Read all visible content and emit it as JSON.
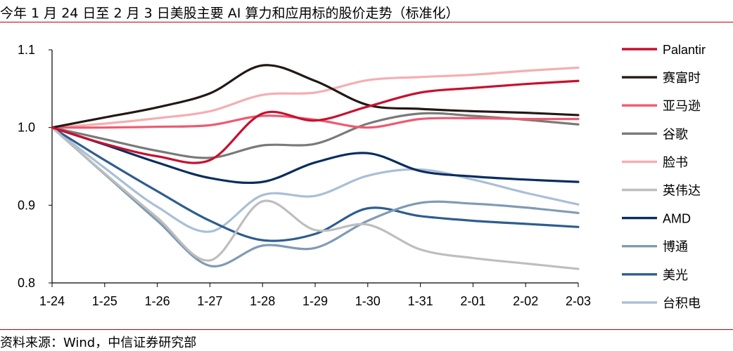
{
  "title": "今年 1 月 24 日至 2 月 3 日美股主要 AI 算力和应用标的股价走势（标准化）",
  "source": "资料来源：Wind，中信证券研究部",
  "chart_data": {
    "type": "line",
    "title": "今年 1 月 24 日至 2 月 3 日美股主要 AI 算力和应用标的股价走势（标准化）",
    "xlabel": "",
    "ylabel": "",
    "categories": [
      "1-24",
      "1-25",
      "1-26",
      "1-27",
      "1-28",
      "1-29",
      "1-30",
      "1-31",
      "2-01",
      "2-02",
      "2-03"
    ],
    "ylim": [
      0.8,
      1.1
    ],
    "yticks": [
      "0.8",
      "0.9",
      "1.0",
      "1.1"
    ],
    "grid": false,
    "legend_position": "right",
    "series": [
      {
        "name": "Palantir",
        "color": "#c8102e",
        "values": [
          1.0,
          0.979,
          0.963,
          0.958,
          1.018,
          1.009,
          1.027,
          1.045,
          1.051,
          1.056,
          1.06
        ]
      },
      {
        "name": "赛富时",
        "color": "#231815",
        "values": [
          1.0,
          1.013,
          1.026,
          1.044,
          1.08,
          1.06,
          1.029,
          1.024,
          1.021,
          1.019,
          1.016
        ]
      },
      {
        "name": "亚马逊",
        "color": "#ee5a70",
        "values": [
          1.0,
          1.0,
          1.001,
          1.003,
          1.015,
          1.01,
          1.0,
          1.011,
          1.012,
          1.011,
          1.011
        ]
      },
      {
        "name": "谷歌",
        "color": "#7a7a7a",
        "values": [
          1.0,
          0.985,
          0.97,
          0.961,
          0.977,
          0.979,
          1.005,
          1.018,
          1.015,
          1.01,
          1.004
        ]
      },
      {
        "name": "脸书",
        "color": "#f5aeb0",
        "values": [
          1.0,
          1.005,
          1.012,
          1.021,
          1.042,
          1.045,
          1.061,
          1.065,
          1.068,
          1.073,
          1.077
        ]
      },
      {
        "name": "英伟达",
        "color": "#bebebe",
        "values": [
          1.0,
          0.941,
          0.884,
          0.829,
          0.905,
          0.868,
          0.875,
          0.843,
          0.832,
          0.825,
          0.818
        ]
      },
      {
        "name": "AMD",
        "color": "#0a2d5e",
        "values": [
          1.0,
          0.978,
          0.955,
          0.935,
          0.93,
          0.955,
          0.967,
          0.944,
          0.937,
          0.933,
          0.93
        ]
      },
      {
        "name": "博通",
        "color": "#7f9bb5",
        "values": [
          1.0,
          0.94,
          0.88,
          0.822,
          0.848,
          0.845,
          0.88,
          0.903,
          0.902,
          0.897,
          0.89
        ]
      },
      {
        "name": "美光",
        "color": "#2e5d8f",
        "values": [
          1.0,
          0.958,
          0.918,
          0.88,
          0.855,
          0.863,
          0.896,
          0.886,
          0.88,
          0.876,
          0.872
        ]
      },
      {
        "name": "台积电",
        "color": "#a9bfd6",
        "values": [
          1.0,
          0.948,
          0.898,
          0.866,
          0.913,
          0.912,
          0.938,
          0.946,
          0.933,
          0.916,
          0.901
        ]
      }
    ]
  }
}
